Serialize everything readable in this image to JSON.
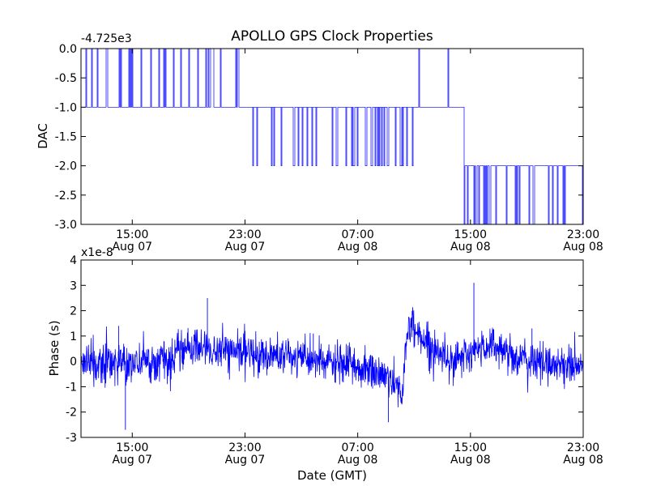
{
  "title": "APOLLO GPS Clock Properties",
  "chart_data": [
    {
      "type": "line",
      "ylabel": "DAC",
      "offset_label": "-4.725e3",
      "ylim": [
        -3.0,
        0.0
      ],
      "yticks": [
        0.0,
        -0.5,
        -1.0,
        -1.5,
        -2.0,
        -2.5,
        -3.0
      ],
      "ytick_labels": [
        "0.0",
        "-0.5",
        "-1.0",
        "-1.5",
        "-2.0",
        "-2.5",
        "-3.0"
      ],
      "xlim_hours": [
        10.5,
        25.2
      ],
      "xticks": [
        {
          "time": "15:00",
          "date": "Aug 07"
        },
        {
          "time": "23:00",
          "date": "Aug 07"
        },
        {
          "time": "07:00",
          "date": "Aug 08"
        },
        {
          "time": "15:00",
          "date": "Aug 08"
        },
        {
          "time": "23:00",
          "date": "Aug 08"
        }
      ],
      "line_color": "#0000ff",
      "segments": [
        {
          "start": 10.5,
          "end": 15.3,
          "base": -1,
          "alt": 0,
          "toggle_prob": 0.55
        },
        {
          "start": 15.3,
          "end": 20.3,
          "base": -1,
          "alt": -2,
          "toggle_prob": 0.45
        },
        {
          "start": 20.3,
          "end": 21.7,
          "base": -1,
          "alt": 0,
          "toggle_prob": 0.15
        },
        {
          "start": 21.7,
          "end": 23.5,
          "base": -2,
          "alt": -3,
          "toggle_prob": 0.5
        },
        {
          "start": 23.5,
          "end": 25.2,
          "base": -2,
          "alt": -3,
          "toggle_prob": 0.55
        }
      ]
    },
    {
      "type": "line",
      "ylabel": "Phase (s)",
      "xlabel": "Date (GMT)",
      "offset_label": "x1e-8",
      "ylim": [
        -3,
        4
      ],
      "yticks": [
        4,
        3,
        2,
        1,
        0,
        -1,
        -2,
        -3
      ],
      "ytick_labels": [
        "4",
        "3",
        "2",
        "1",
        "0",
        "-1",
        "-2",
        "-3"
      ],
      "xlim_hours": [
        10.5,
        25.2
      ],
      "xticks": [
        {
          "time": "15:00",
          "date": "Aug 07"
        },
        {
          "time": "23:00",
          "date": "Aug 07"
        },
        {
          "time": "07:00",
          "date": "Aug 08"
        },
        {
          "time": "15:00",
          "date": "Aug 08"
        },
        {
          "time": "23:00",
          "date": "Aug 08"
        }
      ],
      "line_color": "#0000ff",
      "envelope": [
        {
          "t": 10.5,
          "mean": -0.1
        },
        {
          "t": 13.0,
          "mean": 0.0
        },
        {
          "t": 13.8,
          "mean": 0.6
        },
        {
          "t": 14.5,
          "mean": 0.4
        },
        {
          "t": 16.5,
          "mean": 0.2
        },
        {
          "t": 18.5,
          "mean": -0.2
        },
        {
          "t": 19.5,
          "mean": -0.6
        },
        {
          "t": 19.9,
          "mean": -1.2
        },
        {
          "t": 20.1,
          "mean": 1.5
        },
        {
          "t": 20.8,
          "mean": 0.5
        },
        {
          "t": 21.5,
          "mean": 0.0
        },
        {
          "t": 22.5,
          "mean": 0.7
        },
        {
          "t": 23.5,
          "mean": 0.0
        },
        {
          "t": 25.2,
          "mean": -0.2
        }
      ],
      "spikes": [
        {
          "t": 11.8,
          "v": -2.7
        },
        {
          "t": 11.6,
          "v": 1.4
        },
        {
          "t": 14.2,
          "v": 2.5
        },
        {
          "t": 15.3,
          "v": 1.2
        },
        {
          "t": 17.3,
          "v": 1.1
        },
        {
          "t": 19.5,
          "v": -2.4
        },
        {
          "t": 22.0,
          "v": 3.1
        },
        {
          "t": 23.7,
          "v": 1.3
        }
      ]
    }
  ]
}
